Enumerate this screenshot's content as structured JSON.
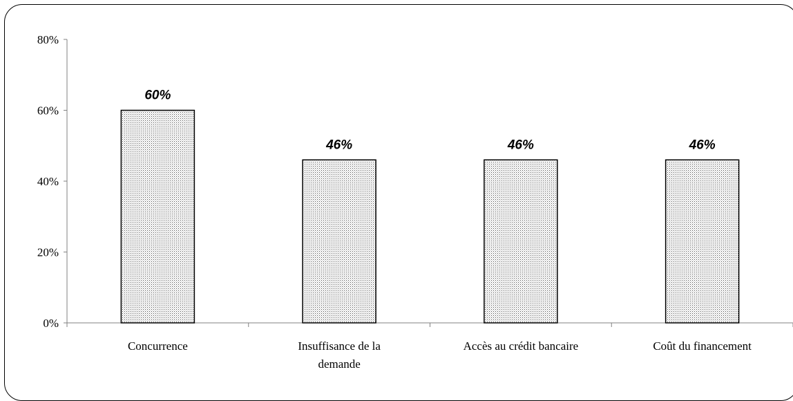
{
  "chart_data": {
    "type": "bar",
    "categories": [
      [
        "Concurrence"
      ],
      [
        "Insuffisance de la",
        "demande"
      ],
      [
        "Accès au crédit bancaire"
      ],
      [
        "Coût du financement"
      ]
    ],
    "values": [
      60,
      46,
      46,
      46
    ],
    "value_labels": [
      "60%",
      "46%",
      "46%",
      "46%"
    ],
    "ylim": [
      0,
      80
    ],
    "yticks": [
      0,
      20,
      40,
      60,
      80
    ],
    "ytick_labels": [
      "0%",
      "20%",
      "40%",
      "60%",
      "80%"
    ],
    "title": "",
    "xlabel": "",
    "ylabel": "",
    "grid": false,
    "bar_fill": "dotted-pattern",
    "bar_color": "#ffffff",
    "dot_color": "#555555",
    "axis_color": "#808080"
  }
}
